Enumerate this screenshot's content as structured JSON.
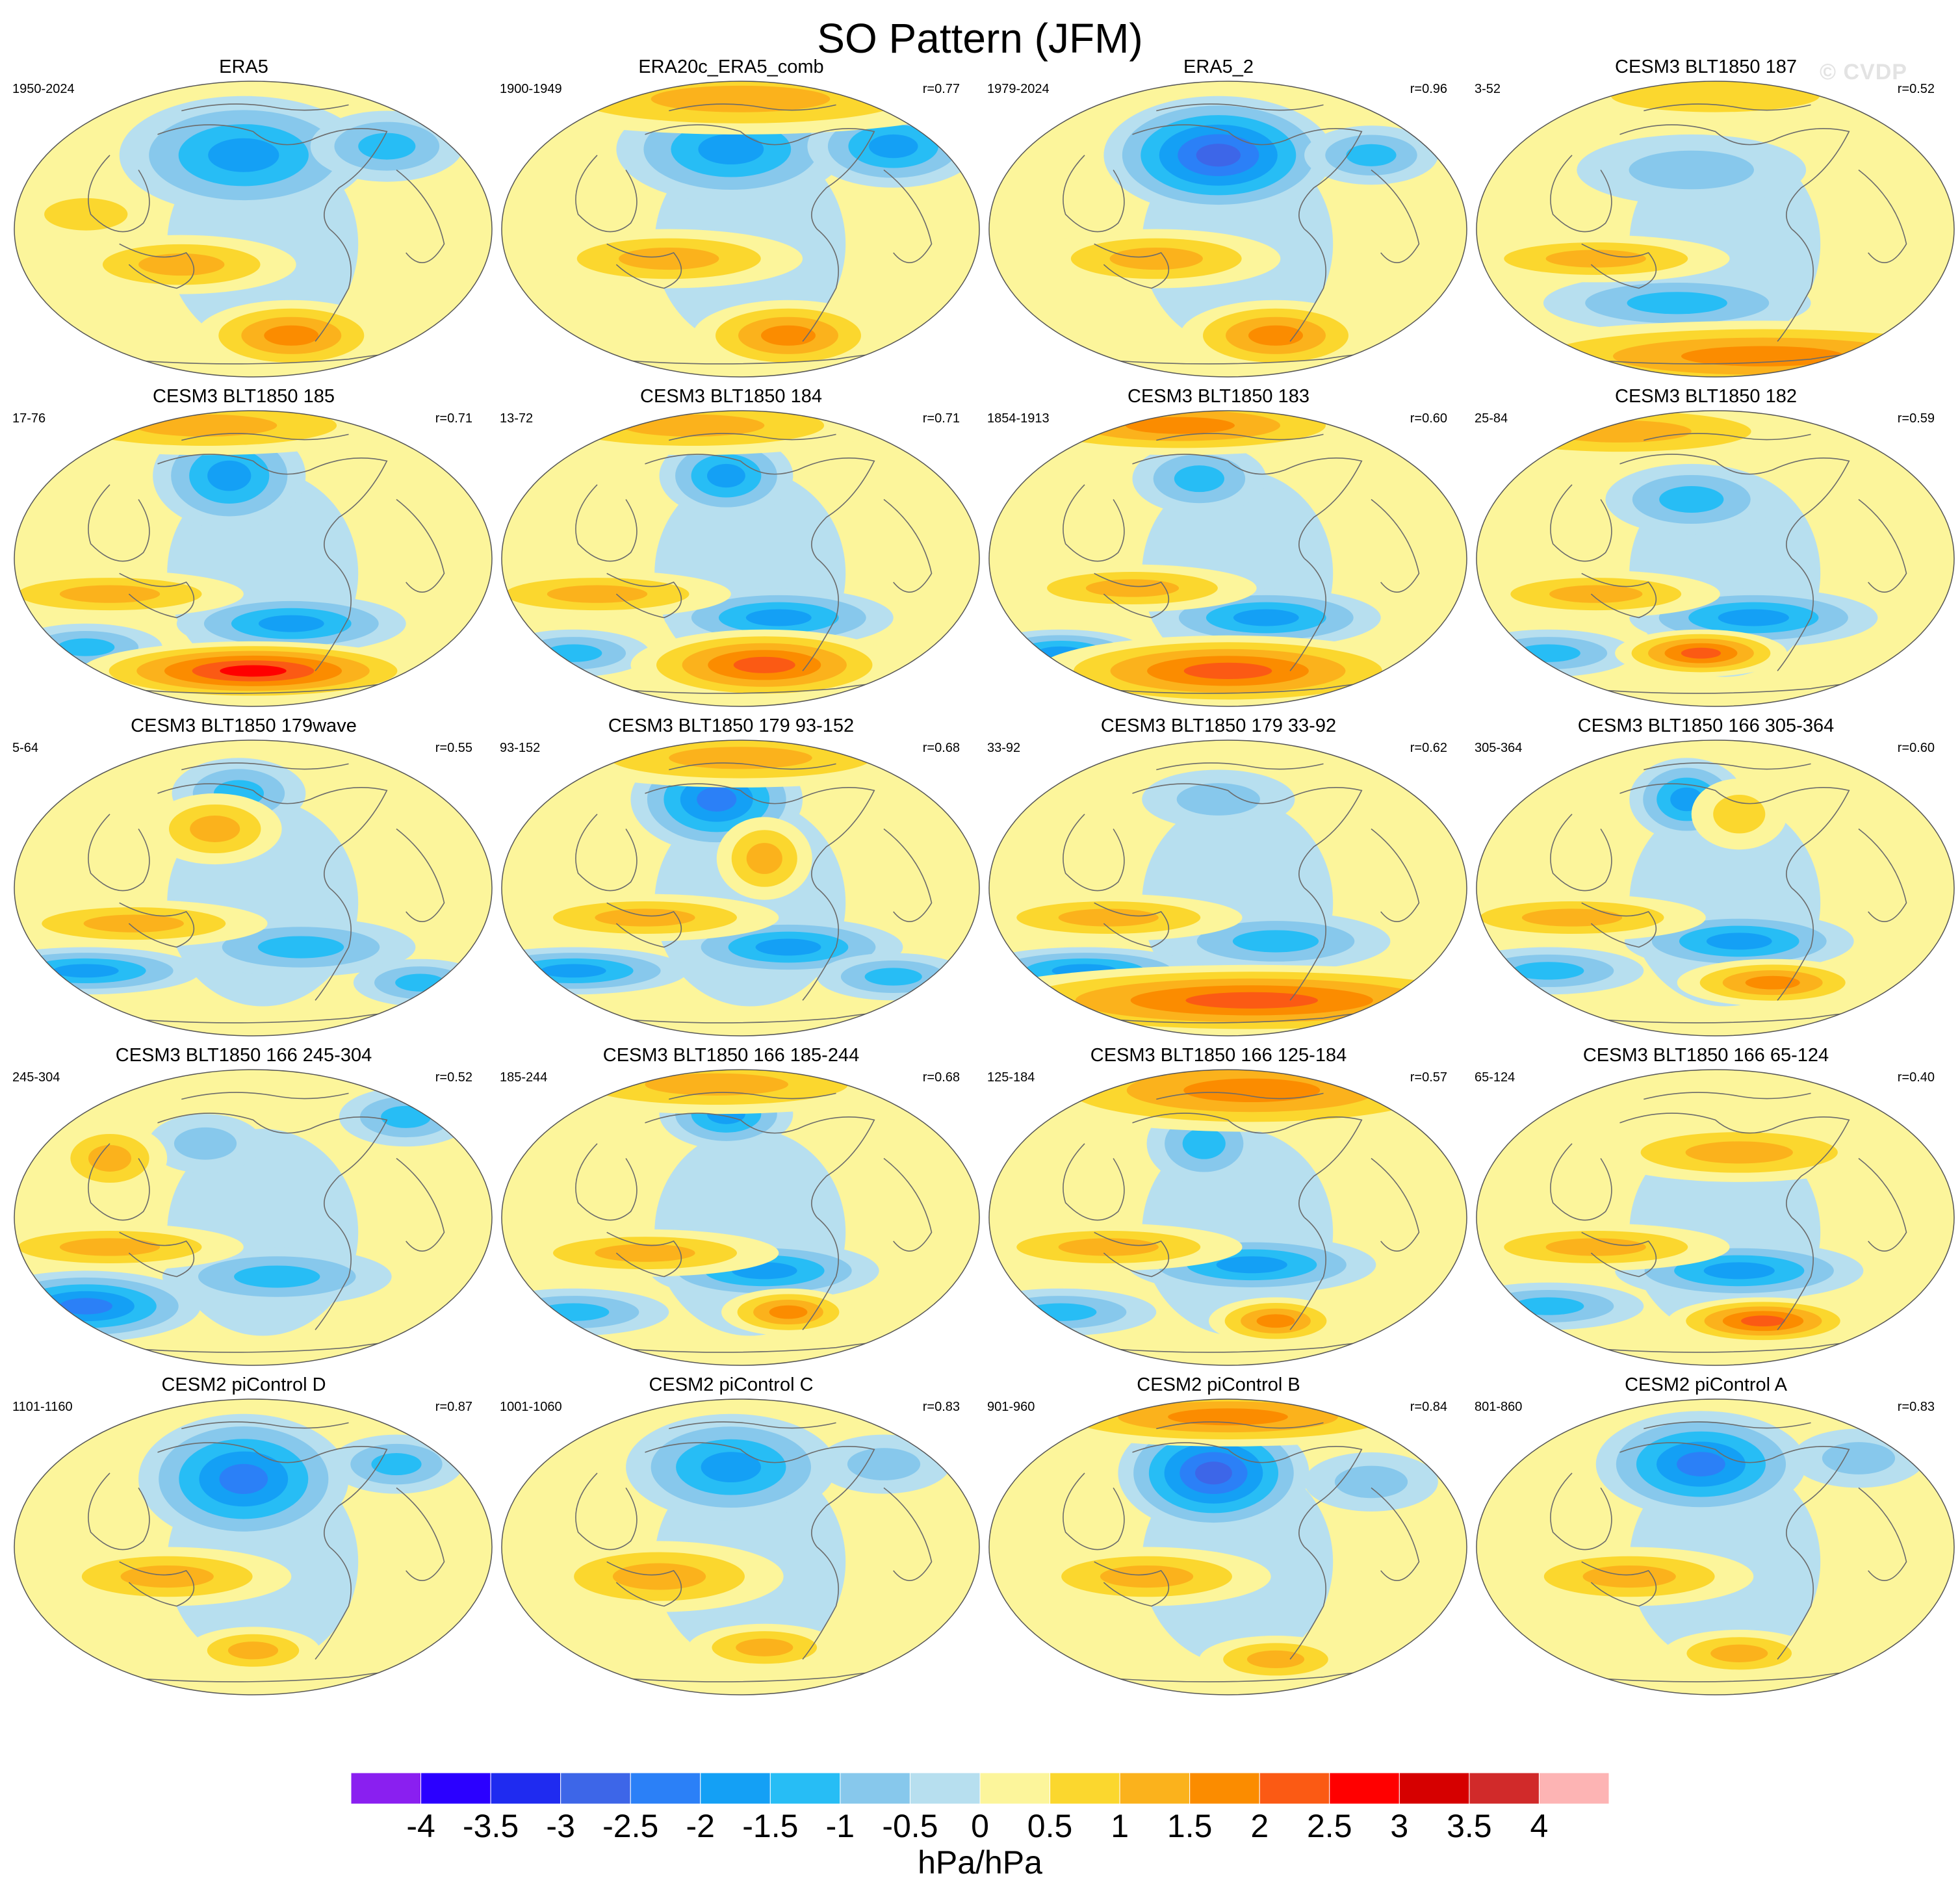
{
  "title": "SO Pattern (JFM)",
  "watermark": "© CVDP",
  "panels": [
    {
      "title": "ERA5",
      "years": "1950-2024",
      "r": "",
      "lows": [
        [
          0.48,
          0.25,
          1.5,
          0.13,
          0.1
        ],
        [
          0.78,
          0.22,
          0.8,
          0.08,
          0.06
        ]
      ],
      "highs": [
        [
          0.35,
          0.62,
          0.9,
          0.12,
          0.05
        ],
        [
          0.58,
          0.86,
          1.3,
          0.1,
          0.06
        ],
        [
          0.15,
          0.45,
          0.6,
          0.08,
          0.05
        ]
      ]
    },
    {
      "title": "ERA20c_ERA5_comb",
      "years": "1900-1949",
      "r": "r=0.77",
      "lows": [
        [
          0.48,
          0.23,
          1.5,
          0.12,
          0.09
        ],
        [
          0.82,
          0.22,
          1.3,
          0.09,
          0.07
        ]
      ],
      "highs": [
        [
          0.5,
          0.06,
          1.0,
          0.25,
          0.06
        ],
        [
          0.35,
          0.6,
          0.9,
          0.14,
          0.05
        ],
        [
          0.6,
          0.86,
          1.6,
          0.1,
          0.06
        ]
      ]
    },
    {
      "title": "ERA5_2",
      "years": "1979-2024",
      "r": "r=0.96",
      "lows": [
        [
          0.48,
          0.25,
          2.6,
          0.12,
          0.1
        ],
        [
          0.8,
          0.25,
          0.8,
          0.07,
          0.05
        ]
      ],
      "highs": [
        [
          0.35,
          0.6,
          1.0,
          0.13,
          0.05
        ],
        [
          0.6,
          0.86,
          1.4,
          0.1,
          0.06
        ]
      ]
    },
    {
      "title": "CESM3 BLT1850 187",
      "years": "3-52",
      "r": "r=0.52",
      "lows": [
        [
          0.45,
          0.3,
          0.7,
          0.12,
          0.06
        ],
        [
          0.42,
          0.75,
          0.9,
          0.14,
          0.05
        ]
      ],
      "highs": [
        [
          0.6,
          0.93,
          1.3,
          0.3,
          0.06
        ],
        [
          0.25,
          0.6,
          0.9,
          0.14,
          0.04
        ],
        [
          0.5,
          0.05,
          0.7,
          0.2,
          0.05
        ]
      ]
    },
    {
      "title": "CESM3 BLT1850 185",
      "years": "17-76",
      "r": "r=0.71",
      "lows": [
        [
          0.45,
          0.22,
          1.6,
          0.08,
          0.09
        ],
        [
          0.58,
          0.72,
          1.3,
          0.12,
          0.05
        ],
        [
          0.15,
          0.8,
          1.1,
          0.08,
          0.04
        ]
      ],
      "highs": [
        [
          0.5,
          0.88,
          2.3,
          0.18,
          0.05
        ],
        [
          0.2,
          0.62,
          1.0,
          0.14,
          0.04
        ],
        [
          0.4,
          0.05,
          1.0,
          0.2,
          0.05
        ]
      ]
    },
    {
      "title": "CESM3 BLT1850 184",
      "years": "13-72",
      "r": "r=0.71",
      "lows": [
        [
          0.47,
          0.22,
          1.3,
          0.07,
          0.07
        ],
        [
          0.58,
          0.7,
          1.4,
          0.12,
          0.05
        ],
        [
          0.15,
          0.82,
          1.1,
          0.08,
          0.04
        ]
      ],
      "highs": [
        [
          0.55,
          0.86,
          2.0,
          0.14,
          0.06
        ],
        [
          0.2,
          0.62,
          1.0,
          0.14,
          0.04
        ],
        [
          0.4,
          0.05,
          1.0,
          0.2,
          0.05
        ]
      ]
    },
    {
      "title": "CESM3 BLT1850 183",
      "years": "1854-1913",
      "r": "r=0.60",
      "lows": [
        [
          0.44,
          0.23,
          1.0,
          0.07,
          0.06
        ],
        [
          0.58,
          0.7,
          1.3,
          0.12,
          0.05
        ],
        [
          0.15,
          0.82,
          1.3,
          0.09,
          0.04
        ]
      ],
      "highs": [
        [
          0.5,
          0.88,
          1.8,
          0.2,
          0.06
        ],
        [
          0.3,
          0.6,
          1.0,
          0.13,
          0.04
        ],
        [
          0.4,
          0.05,
          1.4,
          0.2,
          0.05
        ]
      ]
    },
    {
      "title": "CESM3 BLT1850 182",
      "years": "25-84",
      "r": "r=0.59",
      "lows": [
        [
          0.45,
          0.3,
          1.0,
          0.09,
          0.06
        ],
        [
          0.58,
          0.7,
          1.4,
          0.13,
          0.05
        ],
        [
          0.15,
          0.82,
          1.2,
          0.09,
          0.04
        ]
      ],
      "highs": [
        [
          0.47,
          0.82,
          1.8,
          0.09,
          0.04
        ],
        [
          0.25,
          0.62,
          1.0,
          0.13,
          0.04
        ],
        [
          0.3,
          0.07,
          1.1,
          0.2,
          0.05
        ]
      ]
    },
    {
      "title": "CESM3 BLT1850 179wave",
      "years": "5-64",
      "r": "r=0.55",
      "lows": [
        [
          0.47,
          0.18,
          1.2,
          0.07,
          0.06
        ],
        [
          0.6,
          0.7,
          1.2,
          0.12,
          0.05
        ],
        [
          0.15,
          0.78,
          1.3,
          0.12,
          0.04
        ],
        [
          0.85,
          0.82,
          1.1,
          0.07,
          0.04
        ]
      ],
      "highs": [
        [
          0.25,
          0.62,
          1.0,
          0.14,
          0.04
        ],
        [
          0.42,
          0.3,
          0.8,
          0.07,
          0.06
        ]
      ]
    },
    {
      "title": "CESM3 BLT1850 179 93-152",
      "years": "93-152",
      "r": "r=0.68",
      "lows": [
        [
          0.45,
          0.2,
          2.0,
          0.09,
          0.09
        ],
        [
          0.6,
          0.7,
          1.3,
          0.12,
          0.05
        ],
        [
          0.15,
          0.78,
          1.3,
          0.12,
          0.04
        ],
        [
          0.82,
          0.8,
          1.1,
          0.08,
          0.04
        ]
      ],
      "highs": [
        [
          0.5,
          0.06,
          1.2,
          0.2,
          0.05
        ],
        [
          0.3,
          0.6,
          1.0,
          0.14,
          0.04
        ],
        [
          0.55,
          0.4,
          0.8,
          0.05,
          0.07
        ]
      ]
    },
    {
      "title": "CESM3 BLT1850 179 33-92",
      "years": "33-92",
      "r": "r=0.62",
      "lows": [
        [
          0.6,
          0.68,
          1.2,
          0.12,
          0.05
        ],
        [
          0.2,
          0.78,
          1.4,
          0.12,
          0.04
        ],
        [
          0.48,
          0.2,
          0.7,
          0.08,
          0.05
        ]
      ],
      "highs": [
        [
          0.55,
          0.88,
          2.2,
          0.3,
          0.06
        ],
        [
          0.25,
          0.6,
          1.0,
          0.14,
          0.04
        ]
      ]
    },
    {
      "title": "CESM3 BLT1850 166 305-364",
      "years": "305-364",
      "r": "r=0.60",
      "lows": [
        [
          0.44,
          0.2,
          1.4,
          0.06,
          0.07
        ],
        [
          0.55,
          0.68,
          1.3,
          0.12,
          0.05
        ],
        [
          0.15,
          0.78,
          1.2,
          0.1,
          0.04
        ]
      ],
      "highs": [
        [
          0.62,
          0.82,
          1.6,
          0.1,
          0.04
        ],
        [
          0.2,
          0.6,
          1.0,
          0.14,
          0.04
        ],
        [
          0.55,
          0.25,
          0.6,
          0.05,
          0.06
        ]
      ]
    },
    {
      "title": "CESM3 BLT1850 166 245-304",
      "years": "245-304",
      "r": "r=0.52",
      "lows": [
        [
          0.15,
          0.8,
          1.9,
          0.12,
          0.06
        ],
        [
          0.55,
          0.7,
          1.2,
          0.12,
          0.05
        ],
        [
          0.82,
          0.16,
          0.8,
          0.07,
          0.05
        ],
        [
          0.4,
          0.25,
          0.7,
          0.06,
          0.05
        ]
      ],
      "highs": [
        [
          0.2,
          0.6,
          1.0,
          0.14,
          0.04
        ],
        [
          0.2,
          0.3,
          0.8,
          0.06,
          0.06
        ]
      ]
    },
    {
      "title": "CESM3 BLT1850 166 185-244",
      "years": "185-244",
      "r": "r=0.68",
      "lows": [
        [
          0.47,
          0.15,
          1.4,
          0.07,
          0.06
        ],
        [
          0.55,
          0.68,
          1.3,
          0.12,
          0.05
        ],
        [
          0.15,
          0.82,
          1.1,
          0.1,
          0.04
        ]
      ],
      "highs": [
        [
          0.6,
          0.82,
          1.3,
          0.07,
          0.04
        ],
        [
          0.3,
          0.62,
          1.0,
          0.14,
          0.04
        ],
        [
          0.45,
          0.05,
          0.8,
          0.2,
          0.05
        ]
      ]
    },
    {
      "title": "CESM3 BLT1850 166 125-184",
      "years": "125-184",
      "r": "r=0.57",
      "lows": [
        [
          0.45,
          0.25,
          1.1,
          0.06,
          0.07
        ],
        [
          0.55,
          0.66,
          1.4,
          0.13,
          0.05
        ],
        [
          0.15,
          0.82,
          1.1,
          0.1,
          0.04
        ]
      ],
      "highs": [
        [
          0.55,
          0.07,
          1.5,
          0.25,
          0.07
        ],
        [
          0.6,
          0.85,
          1.6,
          0.07,
          0.04
        ],
        [
          0.25,
          0.6,
          1.0,
          0.14,
          0.04
        ]
      ]
    },
    {
      "title": "CESM3 BLT1850 166 65-124",
      "years": "65-124",
      "r": "r=0.40",
      "lows": [
        [
          0.55,
          0.68,
          1.5,
          0.13,
          0.05
        ],
        [
          0.15,
          0.8,
          1.0,
          0.1,
          0.04
        ]
      ],
      "highs": [
        [
          0.6,
          0.85,
          1.9,
          0.1,
          0.04
        ],
        [
          0.55,
          0.28,
          1.0,
          0.15,
          0.05
        ],
        [
          0.25,
          0.6,
          1.0,
          0.14,
          0.04
        ]
      ]
    },
    {
      "title": "CESM2 piControl D",
      "years": "1101-1160",
      "r": "r=0.87",
      "lows": [
        [
          0.48,
          0.27,
          1.8,
          0.11,
          0.11
        ],
        [
          0.8,
          0.22,
          0.8,
          0.07,
          0.05
        ]
      ],
      "highs": [
        [
          0.32,
          0.6,
          1.0,
          0.13,
          0.05
        ],
        [
          0.5,
          0.85,
          1.0,
          0.07,
          0.04
        ]
      ]
    },
    {
      "title": "CESM2 piControl C",
      "years": "1001-1060",
      "r": "r=0.83",
      "lows": [
        [
          0.48,
          0.23,
          1.6,
          0.11,
          0.09
        ],
        [
          0.8,
          0.22,
          0.7,
          0.07,
          0.05
        ]
      ],
      "highs": [
        [
          0.33,
          0.6,
          1.0,
          0.13,
          0.06
        ],
        [
          0.55,
          0.84,
          0.9,
          0.08,
          0.04
        ]
      ]
    },
    {
      "title": "CESM2 piControl B",
      "years": "901-960",
      "r": "r=0.84",
      "lows": [
        [
          0.47,
          0.25,
          2.6,
          0.1,
          0.1
        ],
        [
          0.8,
          0.28,
          0.7,
          0.07,
          0.05
        ]
      ],
      "highs": [
        [
          0.5,
          0.06,
          1.5,
          0.22,
          0.05
        ],
        [
          0.33,
          0.6,
          1.0,
          0.13,
          0.05
        ],
        [
          0.6,
          0.88,
          1.0,
          0.08,
          0.04
        ]
      ]
    },
    {
      "title": "CESM2 piControl A",
      "years": "801-860",
      "r": "r=0.83",
      "lows": [
        [
          0.47,
          0.22,
          1.9,
          0.11,
          0.09
        ],
        [
          0.8,
          0.2,
          0.7,
          0.07,
          0.05
        ]
      ],
      "highs": [
        [
          0.32,
          0.6,
          1.0,
          0.13,
          0.05
        ],
        [
          0.55,
          0.86,
          1.0,
          0.08,
          0.04
        ]
      ]
    }
  ],
  "colorbar": {
    "labels": [
      "-4",
      "-3.5",
      "-3",
      "-2.5",
      "-2",
      "-1.5",
      "-1",
      "-0.5",
      "0",
      "0.5",
      "1",
      "1.5",
      "2",
      "2.5",
      "3",
      "3.5",
      "4"
    ],
    "colors": [
      "#8a1ff0",
      "#2b00ff",
      "#1f2bf0",
      "#3d66e8",
      "#2b80f7",
      "#14a0f5",
      "#27bdf5",
      "#87c8ec",
      "#b7dfef",
      "#fcf59b",
      "#fbd72e",
      "#fbb21c",
      "#fb8c00",
      "#fb5a14",
      "#ff0000",
      "#d60000",
      "#d12a2a",
      "#fdb4b4"
    ],
    "units": "hPa/hPa"
  }
}
